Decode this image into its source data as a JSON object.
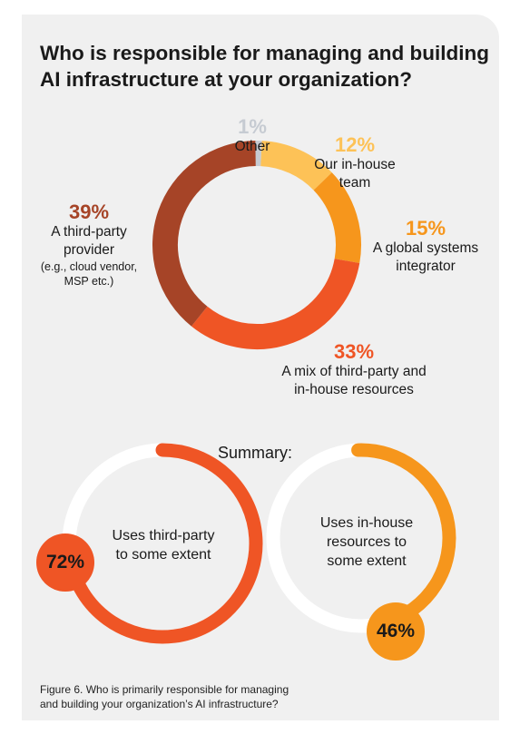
{
  "title": "Who is responsible for managing and building AI infrastructure at your organization?",
  "chart_data": [
    {
      "type": "pie",
      "title": "Who is responsible for managing and building AI infrastructure at your organization?",
      "slices": [
        {
          "label": "Other",
          "value": 1,
          "pct_label": "1%",
          "color": "#d3d5d9"
        },
        {
          "label": "Our in-house team",
          "value": 12,
          "pct_label": "12%",
          "color": "#fdc257"
        },
        {
          "label": "A global systems integrator",
          "value": 15,
          "pct_label": "15%",
          "color": "#f6961c"
        },
        {
          "label": "A mix of third-party and in-house resources",
          "value": 33,
          "pct_label": "33%",
          "color": "#ef5525"
        },
        {
          "label": "A third-party provider",
          "sublabel": "(e.g., cloud vendor, MSP etc.)",
          "value": 39,
          "pct_label": "39%",
          "color": "#a64427"
        }
      ]
    },
    {
      "type": "pie",
      "title": "Summary:",
      "label": "Uses third-party to some extent",
      "value": 72,
      "pct_label": "72%",
      "color": "#ef5525"
    },
    {
      "type": "pie",
      "title": "Summary:",
      "label": "Uses in-house resources to some extent",
      "value": 46,
      "pct_label": "46%",
      "color": "#f6961c"
    }
  ],
  "labels": {
    "other": {
      "pct": "1%",
      "name": "Other"
    },
    "inhouse": {
      "pct": "12%",
      "line1": "Our in-house",
      "line2": "team"
    },
    "gsi": {
      "pct": "15%",
      "line1": "A global systems",
      "line2": "integrator"
    },
    "mix": {
      "pct": "33%",
      "line1": "A mix of third-party and",
      "line2": "in-house resources"
    },
    "third": {
      "pct": "39%",
      "line1": "A third-party",
      "line2": "provider",
      "sub1": "(e.g., cloud vendor,",
      "sub2": "MSP etc.)"
    }
  },
  "summary": {
    "title": "Summary:",
    "left": {
      "pct": "72%",
      "line1": "Uses third-party",
      "line2": "to some extent"
    },
    "right": {
      "pct": "46%",
      "line1": "Uses in-house",
      "line2": "resources to",
      "line3": "some extent"
    }
  },
  "caption": {
    "line1": "Figure 6. Who is primarily responsible for managing",
    "line2": "and building your organization’s AI infrastructure?"
  },
  "colors": {
    "ring_track": "#ffffff",
    "other": "#c6cbd2",
    "inhouse": "#fdc257",
    "gsi": "#f6961c",
    "mix": "#ef5525",
    "third": "#a64427"
  }
}
